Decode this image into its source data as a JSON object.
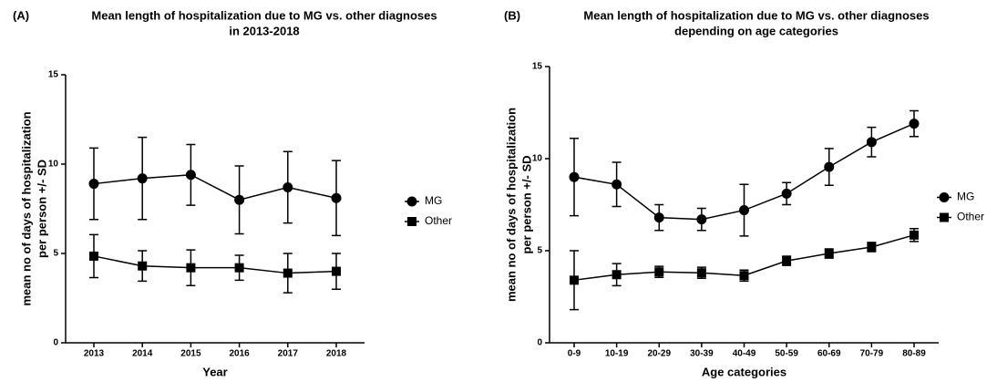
{
  "chart_data": [
    {
      "type": "line",
      "panel": "(A)",
      "title": [
        "Mean length of hospitalization due to MG vs. other diagnoses",
        "in 2013-2018"
      ],
      "x_label": "Year",
      "y_label": [
        "mean no of days of hospitalization",
        "per person +/- SD"
      ],
      "categories": [
        "2013",
        "2014",
        "2015",
        "2016",
        "2017",
        "2018"
      ],
      "ylim": [
        0,
        15
      ],
      "yticks": [
        0,
        5,
        10,
        15
      ],
      "legend": "right",
      "series": [
        {
          "name": "MG",
          "color": "#000000",
          "marker": "circle",
          "values": [
            8.9,
            9.2,
            9.4,
            8.0,
            8.7,
            8.1
          ],
          "errors": [
            2.0,
            2.3,
            1.7,
            1.9,
            2.0,
            2.1
          ]
        },
        {
          "name": "Other",
          "color": "#000000",
          "marker": "square",
          "values": [
            4.85,
            4.3,
            4.2,
            4.2,
            3.9,
            4.0
          ],
          "errors": [
            1.2,
            0.85,
            1.0,
            0.7,
            1.1,
            1.0
          ]
        }
      ]
    },
    {
      "type": "line",
      "panel": "(B)",
      "title": [
        "Mean length of hospitalization due to MG vs. other diagnoses",
        "depending on age categories"
      ],
      "x_label": "Age categories",
      "y_label": [
        "mean no of days of hospitalization",
        "per person +/- SD"
      ],
      "categories": [
        "0-9",
        "10-19",
        "20-29",
        "30-39",
        "40-49",
        "50-59",
        "60-69",
        "70-79",
        "80-89"
      ],
      "ylim": [
        0,
        15
      ],
      "yticks": [
        0,
        5,
        10,
        15
      ],
      "legend": "right",
      "series": [
        {
          "name": "MG",
          "color": "#000000",
          "marker": "circle",
          "values": [
            9.0,
            8.6,
            6.8,
            6.7,
            7.2,
            8.1,
            9.55,
            10.9,
            11.9
          ],
          "errors": [
            2.1,
            1.2,
            0.7,
            0.6,
            1.4,
            0.6,
            1.0,
            0.8,
            0.7
          ]
        },
        {
          "name": "Other",
          "color": "#000000",
          "marker": "square",
          "values": [
            3.4,
            3.7,
            3.85,
            3.8,
            3.65,
            4.45,
            4.85,
            5.2,
            5.85
          ],
          "errors": [
            1.6,
            0.6,
            0.3,
            0.3,
            0.3,
            0.25,
            0.25,
            0.25,
            0.35
          ]
        }
      ]
    }
  ]
}
